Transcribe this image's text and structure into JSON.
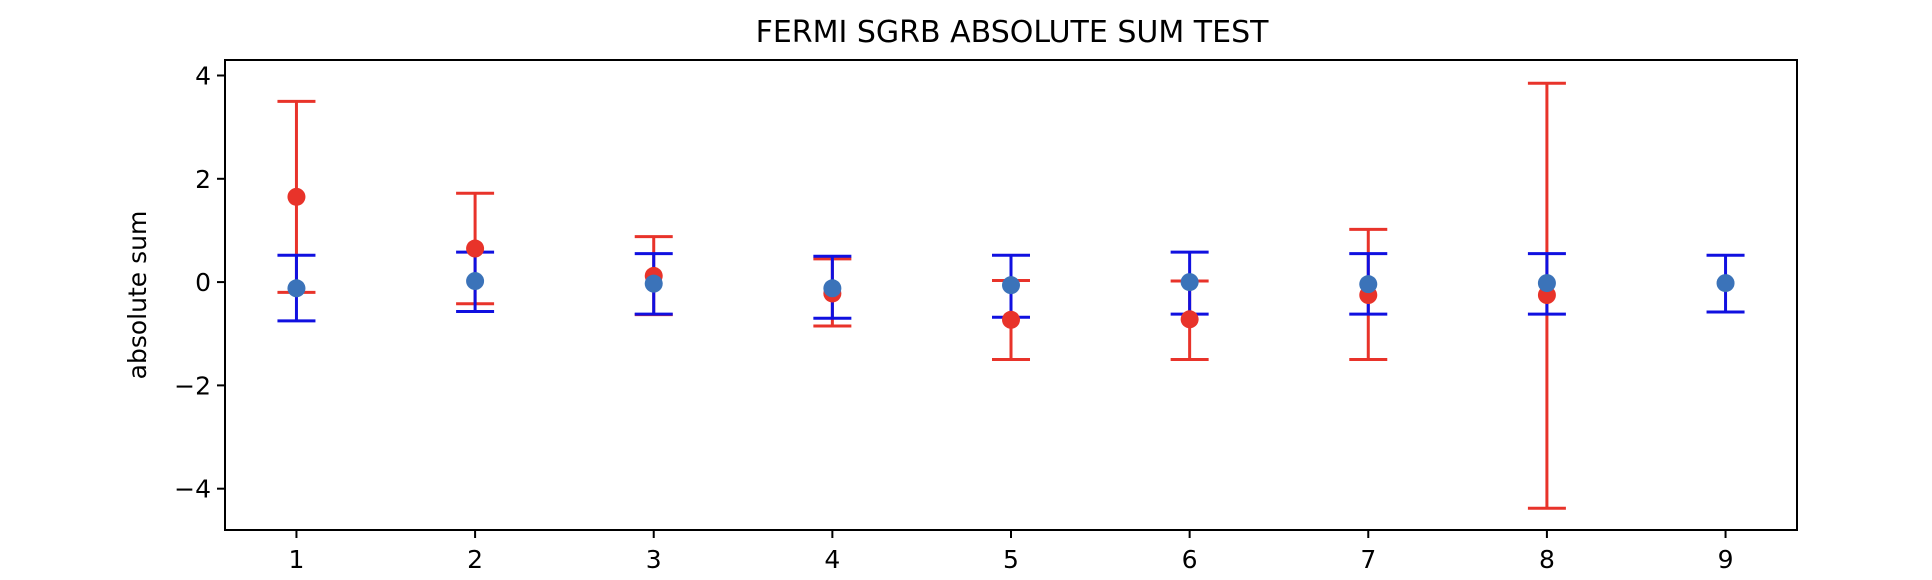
{
  "chart_data": {
    "type": "scatter",
    "title": "FERMI SGRB ABSOLUTE SUM TEST",
    "xlabel": "",
    "ylabel": "absolute sum",
    "xlim": [
      0.6,
      9.4
    ],
    "ylim": [
      -4.8,
      4.3
    ],
    "xticks": [
      1,
      2,
      3,
      4,
      5,
      6,
      7,
      8,
      9
    ],
    "yticks": [
      4,
      2,
      0,
      -2,
      -4
    ],
    "ytick_labels": [
      "4",
      "2",
      "0",
      "−2",
      "−4"
    ],
    "grid": false,
    "series": [
      {
        "color": "#e8332a",
        "x": [
          1,
          2,
          3,
          4,
          5,
          6,
          7,
          8
        ],
        "y": [
          1.65,
          0.65,
          0.12,
          -0.22,
          -0.73,
          -0.72,
          -0.25,
          -0.25
        ],
        "yerr_low": [
          -0.2,
          -0.42,
          -0.63,
          -0.85,
          -1.5,
          -1.5,
          -1.5,
          -4.38
        ],
        "yerr_high": [
          3.5,
          1.72,
          0.88,
          0.45,
          0.03,
          0.02,
          1.02,
          3.85
        ]
      },
      {
        "color": "#3b73b9",
        "errcolor": "#1010e0",
        "x": [
          1,
          2,
          3,
          4,
          5,
          6,
          7,
          8,
          9
        ],
        "y": [
          -0.12,
          0.02,
          -0.03,
          -0.12,
          -0.06,
          0.0,
          -0.04,
          -0.02,
          -0.02
        ],
        "yerr_low": [
          -0.75,
          -0.57,
          -0.62,
          -0.7,
          -0.68,
          -0.62,
          -0.62,
          -0.62,
          -0.58
        ],
        "yerr_high": [
          0.52,
          0.58,
          0.55,
          0.5,
          0.52,
          0.58,
          0.55,
          0.55,
          0.52
        ]
      }
    ]
  }
}
